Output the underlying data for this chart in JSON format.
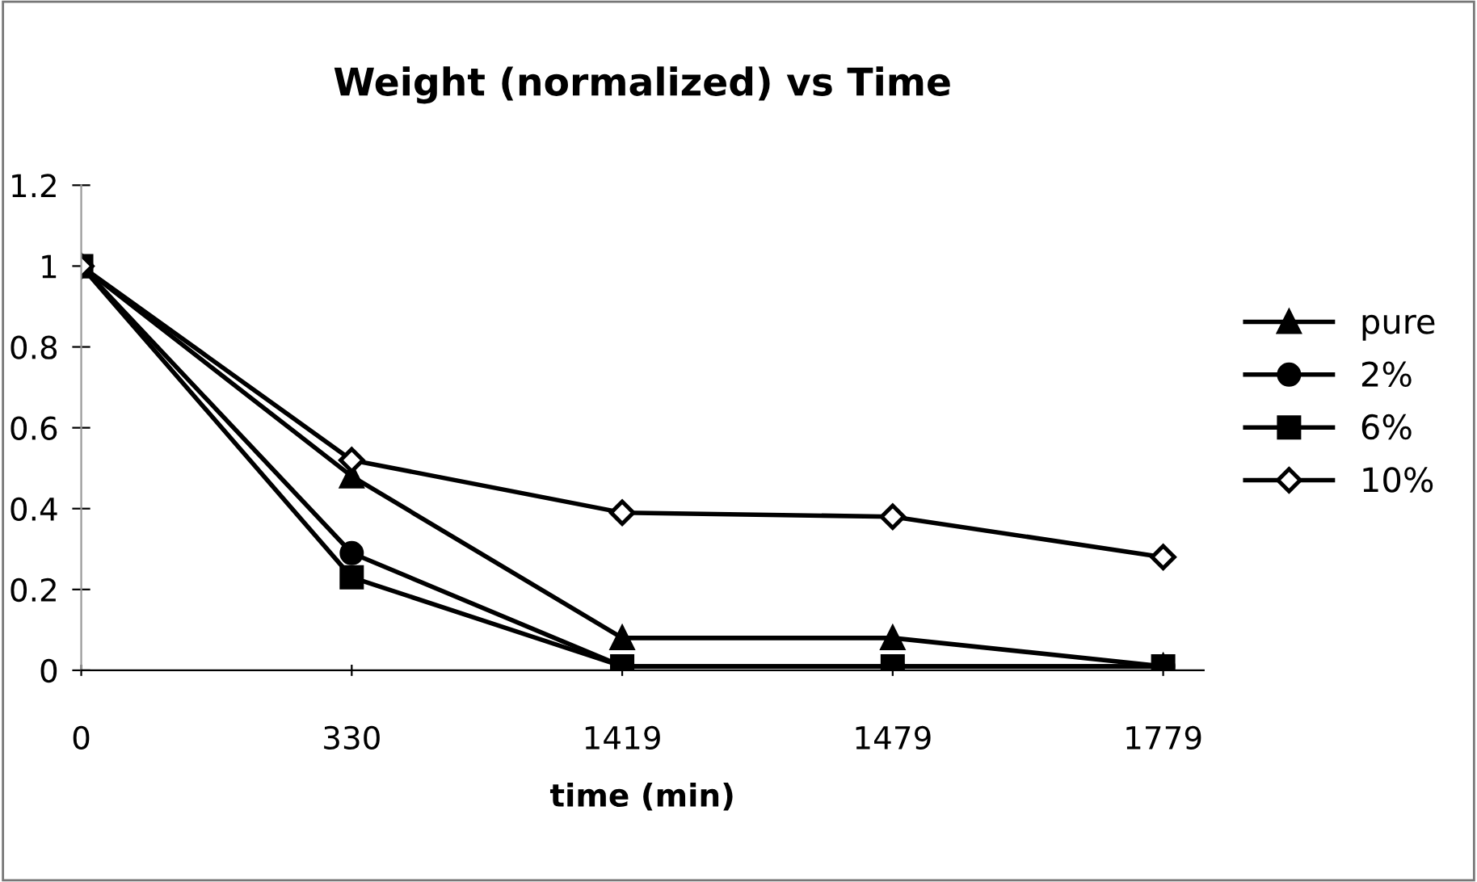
{
  "chart_data": {
    "type": "line",
    "title": "Weight (normalized) vs Time",
    "xlabel": "time (min)",
    "categories": [
      "0",
      "330",
      "1419",
      "1479",
      "1779"
    ],
    "series": [
      {
        "name": "pure",
        "color": "#000000",
        "marker": "triangle",
        "values": [
          1,
          0.48,
          0.08,
          0.08,
          0.01
        ]
      },
      {
        "name": "2%",
        "color": "#000000",
        "marker": "circle",
        "values": [
          1,
          0.29,
          0.01,
          0.01,
          0.01
        ]
      },
      {
        "name": "6%",
        "color": "#000000",
        "marker": "square",
        "values": [
          1,
          0.23,
          0.01,
          0.01,
          0.01
        ]
      },
      {
        "name": "10%",
        "color": "#000000",
        "marker": "diamond",
        "values": [
          1,
          0.52,
          0.39,
          0.38,
          0.28
        ]
      }
    ],
    "ylim": [
      0,
      1.2
    ],
    "yticks": [
      0,
      0.2,
      0.4,
      0.6,
      0.8,
      1,
      1.2
    ],
    "grid": false,
    "legend": "right",
    "line_style": "solid"
  }
}
